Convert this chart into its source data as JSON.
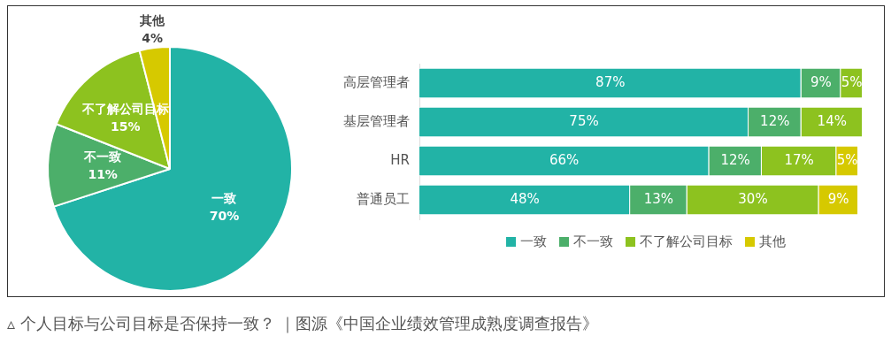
{
  "chart_data": [
    {
      "type": "pie",
      "categories": [
        "一致",
        "不一致",
        "不了解公司目标",
        "其他"
      ],
      "values": [
        70,
        11,
        15,
        4
      ],
      "colors": [
        "#22b3a6",
        "#4caf6a",
        "#8dc21f",
        "#d6c900"
      ],
      "value_labels": [
        "70%",
        "11%",
        "15%",
        "4%"
      ]
    },
    {
      "type": "bar",
      "orientation": "horizontal",
      "stacked": true,
      "categories": [
        "高层管理者",
        "基层管理者",
        "HR",
        "普通员工"
      ],
      "series": [
        {
          "name": "一致",
          "color": "#22b3a6",
          "values": [
            87,
            75,
            66,
            48
          ],
          "value_labels": [
            "87%",
            "75%",
            "66%",
            "48%"
          ]
        },
        {
          "name": "不一致",
          "color": "#4caf6a",
          "values": [
            9,
            12,
            12,
            13
          ],
          "value_labels": [
            "9%",
            "12%",
            "12%",
            "13%"
          ]
        },
        {
          "name": "不了解公司目标",
          "color": "#8dc21f",
          "values": [
            5,
            14,
            17,
            30
          ],
          "value_labels": [
            "5%",
            "14%",
            "17%",
            "30%"
          ]
        },
        {
          "name": "其他",
          "color": "#d6c900",
          "values": [
            null,
            null,
            5,
            9
          ],
          "value_labels": [
            null,
            null,
            "5%",
            "9%"
          ]
        }
      ],
      "legend": "bottom",
      "tick_labels": "y",
      "annotations": [
        "▵ 个人目标与公司目标是否保持一致？ ｜图源《中国企业绩效管理成熟度调查报告》"
      ]
    }
  ]
}
